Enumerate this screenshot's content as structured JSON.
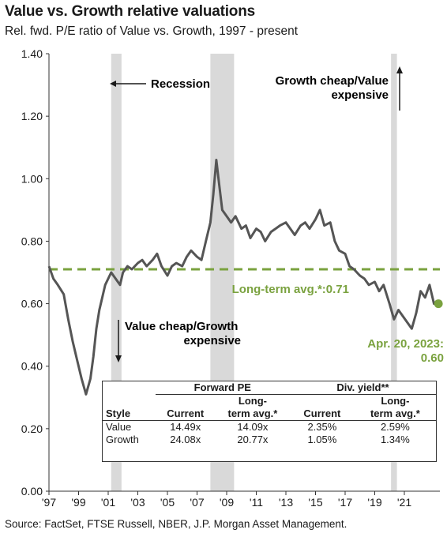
{
  "title": "Value vs. Growth relative valuations",
  "subtitle": "Rel. fwd. P/E ratio of Value vs. Growth, 1997 - present",
  "source": "Source: FactSet, FTSE Russell, NBER, J.P. Morgan Asset Management.",
  "colors": {
    "series": "#555555",
    "avg": "#7aa23f",
    "avg_text": "#7aa23f",
    "recession": "#d9d9d9",
    "axis": "#333333"
  },
  "chart_data": {
    "type": "line",
    "xlabel": "",
    "ylabel": "",
    "xlim": [
      1997.0,
      2023.4
    ],
    "ylim": [
      0.0,
      1.4
    ],
    "yticks": [
      "0.00",
      "0.20",
      "0.40",
      "0.60",
      "0.80",
      "1.00",
      "1.20",
      "1.40"
    ],
    "xticks": [
      {
        "year": 1997,
        "label": "'97"
      },
      {
        "year": 1999,
        "label": "'99"
      },
      {
        "year": 2001,
        "label": "'01"
      },
      {
        "year": 2003,
        "label": "'03"
      },
      {
        "year": 2005,
        "label": "'05"
      },
      {
        "year": 2007,
        "label": "'07"
      },
      {
        "year": 2009,
        "label": "'09"
      },
      {
        "year": 2011,
        "label": "'11"
      },
      {
        "year": 2013,
        "label": "'13"
      },
      {
        "year": 2015,
        "label": "'15"
      },
      {
        "year": 2017,
        "label": "'17"
      },
      {
        "year": 2019,
        "label": "'19"
      },
      {
        "year": 2021,
        "label": "'21"
      }
    ],
    "recessions": [
      [
        2001.2,
        2001.9
      ],
      [
        2007.9,
        2009.5
      ],
      [
        2020.1,
        2020.5
      ]
    ],
    "long_term_avg": 0.71,
    "long_term_avg_label": "Long-term avg.*:0.71",
    "current": {
      "x": 2023.3,
      "y": 0.6,
      "label_line1": "Apr. 20, 2023:",
      "label_line2": "0.60"
    },
    "series": [
      {
        "x": [
          1997.0,
          1997.3,
          1997.6,
          1998.0,
          1998.3,
          1998.6,
          1998.9,
          1999.2,
          1999.5,
          1999.8,
          2000.0,
          2000.2,
          2000.4,
          2000.6,
          2000.8,
          2001.0,
          2001.2,
          2001.5,
          2001.8,
          2002.0,
          2002.3,
          2002.6,
          2003.0,
          2003.3,
          2003.6,
          2004.0,
          2004.3,
          2004.6,
          2005.0,
          2005.3,
          2005.6,
          2006.0,
          2006.3,
          2006.6,
          2007.0,
          2007.3,
          2007.6,
          2007.9,
          2008.1,
          2008.3,
          2008.5,
          2008.7,
          2009.0,
          2009.3,
          2009.6,
          2010.0,
          2010.3,
          2010.6,
          2011.0,
          2011.3,
          2011.6,
          2012.0,
          2012.3,
          2012.6,
          2013.0,
          2013.3,
          2013.6,
          2014.0,
          2014.3,
          2014.6,
          2015.0,
          2015.3,
          2015.6,
          2016.0,
          2016.3,
          2016.6,
          2017.0,
          2017.3,
          2017.6,
          2018.0,
          2018.3,
          2018.6,
          2019.0,
          2019.3,
          2019.6,
          2020.0,
          2020.3,
          2020.6,
          2020.9,
          2021.2,
          2021.5,
          2021.8,
          2022.1,
          2022.4,
          2022.7,
          2023.0,
          2023.3
        ],
        "y": [
          0.72,
          0.68,
          0.66,
          0.63,
          0.55,
          0.48,
          0.42,
          0.36,
          0.31,
          0.36,
          0.43,
          0.52,
          0.58,
          0.62,
          0.66,
          0.68,
          0.7,
          0.68,
          0.66,
          0.7,
          0.72,
          0.71,
          0.73,
          0.74,
          0.72,
          0.74,
          0.76,
          0.72,
          0.69,
          0.72,
          0.73,
          0.72,
          0.75,
          0.77,
          0.75,
          0.74,
          0.8,
          0.86,
          0.95,
          1.06,
          0.98,
          0.9,
          0.88,
          0.86,
          0.88,
          0.84,
          0.85,
          0.81,
          0.84,
          0.83,
          0.8,
          0.83,
          0.84,
          0.85,
          0.86,
          0.84,
          0.82,
          0.85,
          0.86,
          0.84,
          0.87,
          0.9,
          0.85,
          0.86,
          0.8,
          0.77,
          0.76,
          0.72,
          0.71,
          0.69,
          0.68,
          0.66,
          0.67,
          0.64,
          0.66,
          0.6,
          0.55,
          0.58,
          0.56,
          0.54,
          0.52,
          0.57,
          0.64,
          0.62,
          0.66,
          0.6,
          0.6
        ]
      }
    ],
    "annotations": [
      {
        "text": "Recession"
      },
      {
        "text": "Growth cheap/Value",
        "text2": "expensive"
      },
      {
        "text": "Value cheap/Growth",
        "text2": "expensive"
      }
    ]
  },
  "table": {
    "group1": "Forward PE",
    "group2": "Div. yield**",
    "headers": [
      "Style",
      "Current",
      "Long-",
      "term avg.*",
      "Current",
      "Long-",
      "term avg.*"
    ],
    "rows": [
      {
        "style": "Value",
        "pe_cur": "14.49x",
        "pe_avg": "14.09x",
        "dy_cur": "2.35%",
        "dy_avg": "2.59%"
      },
      {
        "style": "Growth",
        "pe_cur": "24.08x",
        "pe_avg": "20.77x",
        "dy_cur": "1.05%",
        "dy_avg": "1.34%"
      }
    ]
  }
}
